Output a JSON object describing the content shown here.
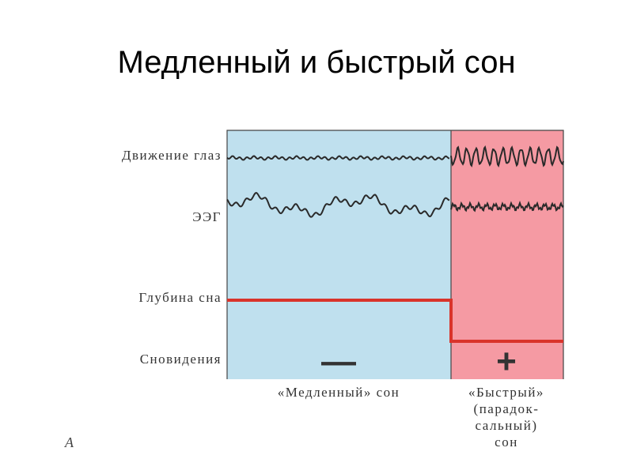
{
  "header": {
    "title": "Медленный и быстрый сон"
  },
  "rows": [
    {
      "label": "Движение глаз"
    },
    {
      "label": "ЭЭГ"
    },
    {
      "label": "Глубина сна"
    },
    {
      "label": "Сновидения"
    }
  ],
  "columns": [
    {
      "lines": [
        "«Медленный» сон"
      ],
      "sign": "—"
    },
    {
      "lines": [
        "«Быстрый»",
        "(парадок-",
        "сальный)",
        "сон"
      ],
      "sign": "+"
    }
  ],
  "figure_letter": "А"
}
